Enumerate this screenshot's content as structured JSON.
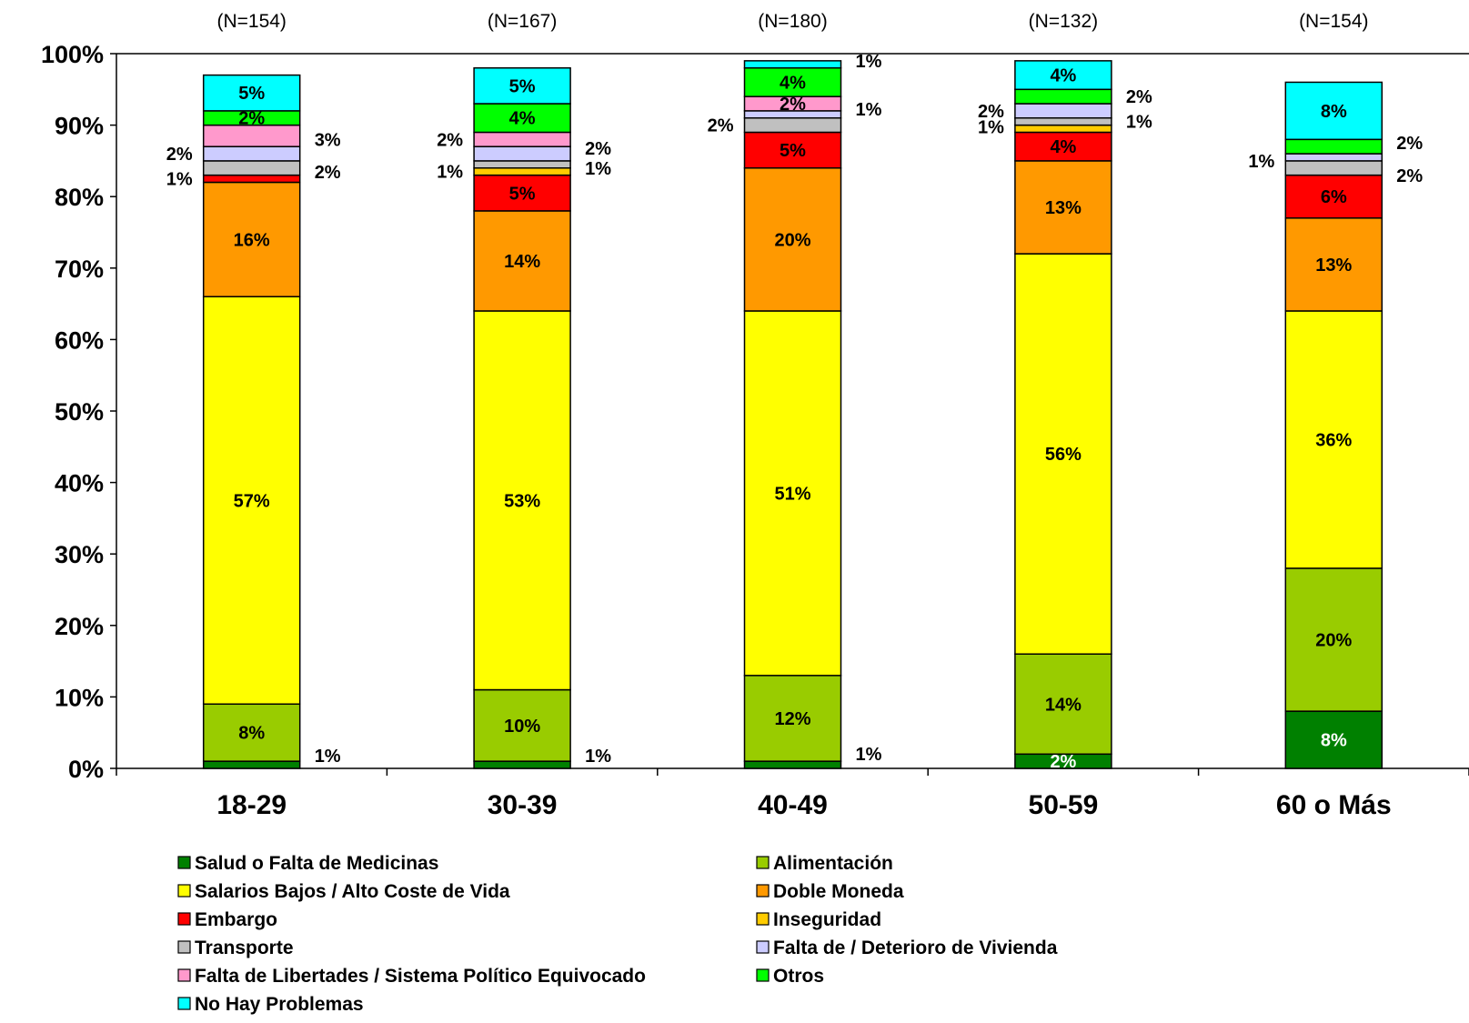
{
  "chart_data": {
    "type": "bar",
    "stacked": true,
    "title": "",
    "xlabel": "",
    "ylabel": "",
    "ylim": [
      0,
      100
    ],
    "yticks": [
      "0%",
      "10%",
      "20%",
      "30%",
      "40%",
      "50%",
      "60%",
      "70%",
      "80%",
      "90%",
      "100%"
    ],
    "categories": [
      "18-29",
      "30-39",
      "40-49",
      "50-59",
      "60 o Más"
    ],
    "sample_sizes": [
      "(N=154)",
      "(N=167)",
      "(N=180)",
      "(N=132)",
      "(N=154)"
    ],
    "legend_position": "bottom",
    "series": [
      {
        "name": "Salud o Falta de Medicinas",
        "color": "#008000",
        "values": [
          1,
          1,
          1,
          2,
          8
        ],
        "labels": [
          "1%",
          "1%",
          "1%",
          "2%",
          "8%"
        ]
      },
      {
        "name": "Alimentación",
        "color": "#99CC00",
        "values": [
          8,
          10,
          12,
          14,
          20
        ],
        "labels": [
          "8%",
          "10%",
          "12%",
          "14%",
          "20%"
        ]
      },
      {
        "name": "Salarios Bajos / Alto Coste de Vida",
        "color": "#FFFF00",
        "values": [
          57,
          53,
          51,
          56,
          36
        ],
        "labels": [
          "57%",
          "53%",
          "51%",
          "56%",
          "36%"
        ]
      },
      {
        "name": "Doble Moneda",
        "color": "#FF9900",
        "values": [
          16,
          14,
          20,
          13,
          13
        ],
        "labels": [
          "16%",
          "14%",
          "20%",
          "13%",
          "13%"
        ]
      },
      {
        "name": "Embargo",
        "color": "#FF0000",
        "values": [
          1,
          5,
          5,
          4,
          6
        ],
        "labels": [
          "1%",
          "5%",
          "5%",
          "4%",
          "6%"
        ]
      },
      {
        "name": "Inseguridad",
        "color": "#FFCC00",
        "values": [
          0,
          1,
          0,
          1,
          0
        ],
        "labels": [
          "",
          "1%",
          "",
          "1%",
          ""
        ]
      },
      {
        "name": "Transporte",
        "color": "#C0C0C0",
        "values": [
          2,
          1,
          2,
          1,
          2
        ],
        "labels": [
          "2%",
          "1%",
          "2%",
          "1%",
          "2%"
        ]
      },
      {
        "name": "Falta de / Deterioro de Vivienda",
        "color": "#CCCCFF",
        "values": [
          2,
          2,
          1,
          2,
          1
        ],
        "labels": [
          "2%",
          "2%",
          "1%",
          "2%",
          "1%"
        ]
      },
      {
        "name": "Falta de Libertades / Sistema Político Equivocado",
        "color": "#FF99CC",
        "values": [
          3,
          2,
          2,
          0,
          0
        ],
        "labels": [
          "3%",
          "2%",
          "2%",
          "",
          ""
        ]
      },
      {
        "name": "Otros",
        "color": "#00FF00",
        "values": [
          2,
          4,
          4,
          2,
          2
        ],
        "labels": [
          "2%",
          "4%",
          "4%",
          "2%",
          "2%"
        ]
      },
      {
        "name": "No Hay Problemas",
        "color": "#00FFFF",
        "values": [
          5,
          5,
          1,
          4,
          8
        ],
        "labels": [
          "5%",
          "5%",
          "1%",
          "4%",
          "8%"
        ]
      }
    ]
  }
}
